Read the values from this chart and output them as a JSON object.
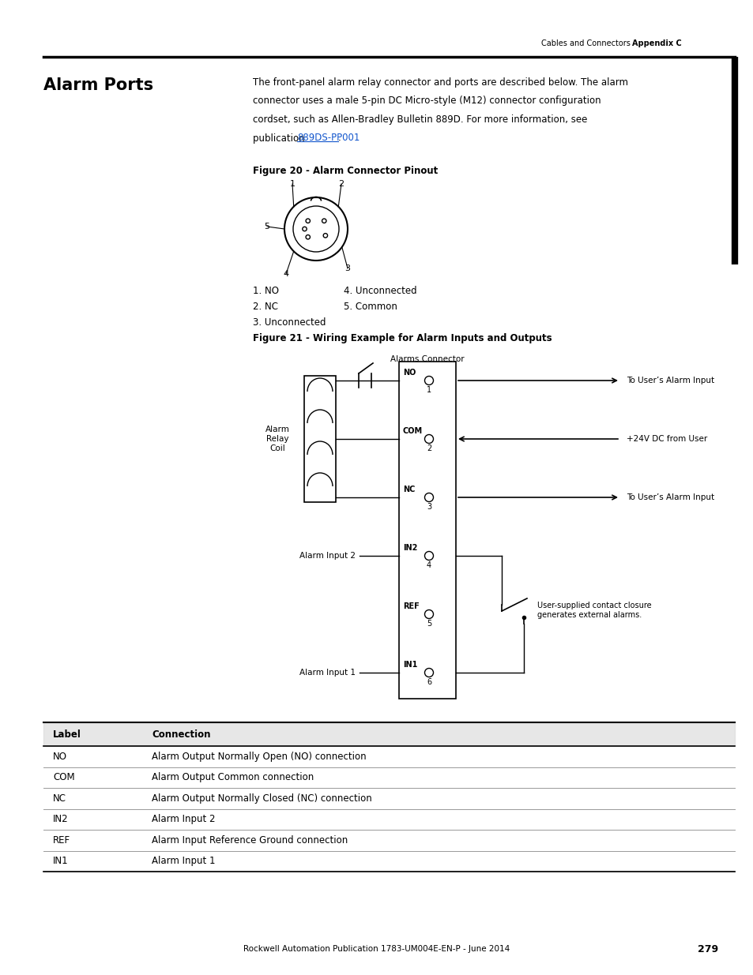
{
  "page_width": 9.54,
  "page_height": 12.35,
  "bg_color": "#ffffff",
  "header_text": "Cables and Connectors",
  "header_bold": "Appendix C",
  "footer_text": "Rockwell Automation Publication 1783-UM004E-EN-P - June 2014",
  "footer_page": "279",
  "section_title": "Alarm Ports",
  "body_text_line1": "The front-panel alarm relay connector and ports are described below. The alarm",
  "body_text_line2": "connector uses a male 5-pin DC Micro-style (M12) connector configuration",
  "body_text_line3": "cordset, such as Allen-Bradley Bulletin 889D. For more information, see",
  "body_text_line4": "publication ",
  "body_link": "889DS-PP001",
  "body_text_line4_end": ".",
  "fig20_caption": "Figure 20 - Alarm Connector Pinout",
  "pin_labels": [
    "1",
    "2",
    "3",
    "4",
    "5"
  ],
  "pin_legend_left": [
    "1. NO",
    "2. NC",
    "3. Unconnected"
  ],
  "pin_legend_right": [
    "4. Unconnected",
    "5. Common"
  ],
  "fig21_caption": "Figure 21 - Wiring Example for Alarm Inputs and Outputs",
  "fig21_connector_label": "Alarms Connector",
  "relay_label": "Alarm\nRelay\nCoil",
  "table_headers": [
    "Label",
    "Connection"
  ],
  "table_rows": [
    [
      "NO",
      "Alarm Output Normally Open (NO) connection"
    ],
    [
      "COM",
      "Alarm Output Common connection"
    ],
    [
      "NC",
      "Alarm Output Normally Closed (NC) connection"
    ],
    [
      "IN2",
      "Alarm Input 2"
    ],
    [
      "REF",
      "Alarm Input Reference Ground connection"
    ],
    [
      "IN1",
      "Alarm Input 1"
    ]
  ]
}
